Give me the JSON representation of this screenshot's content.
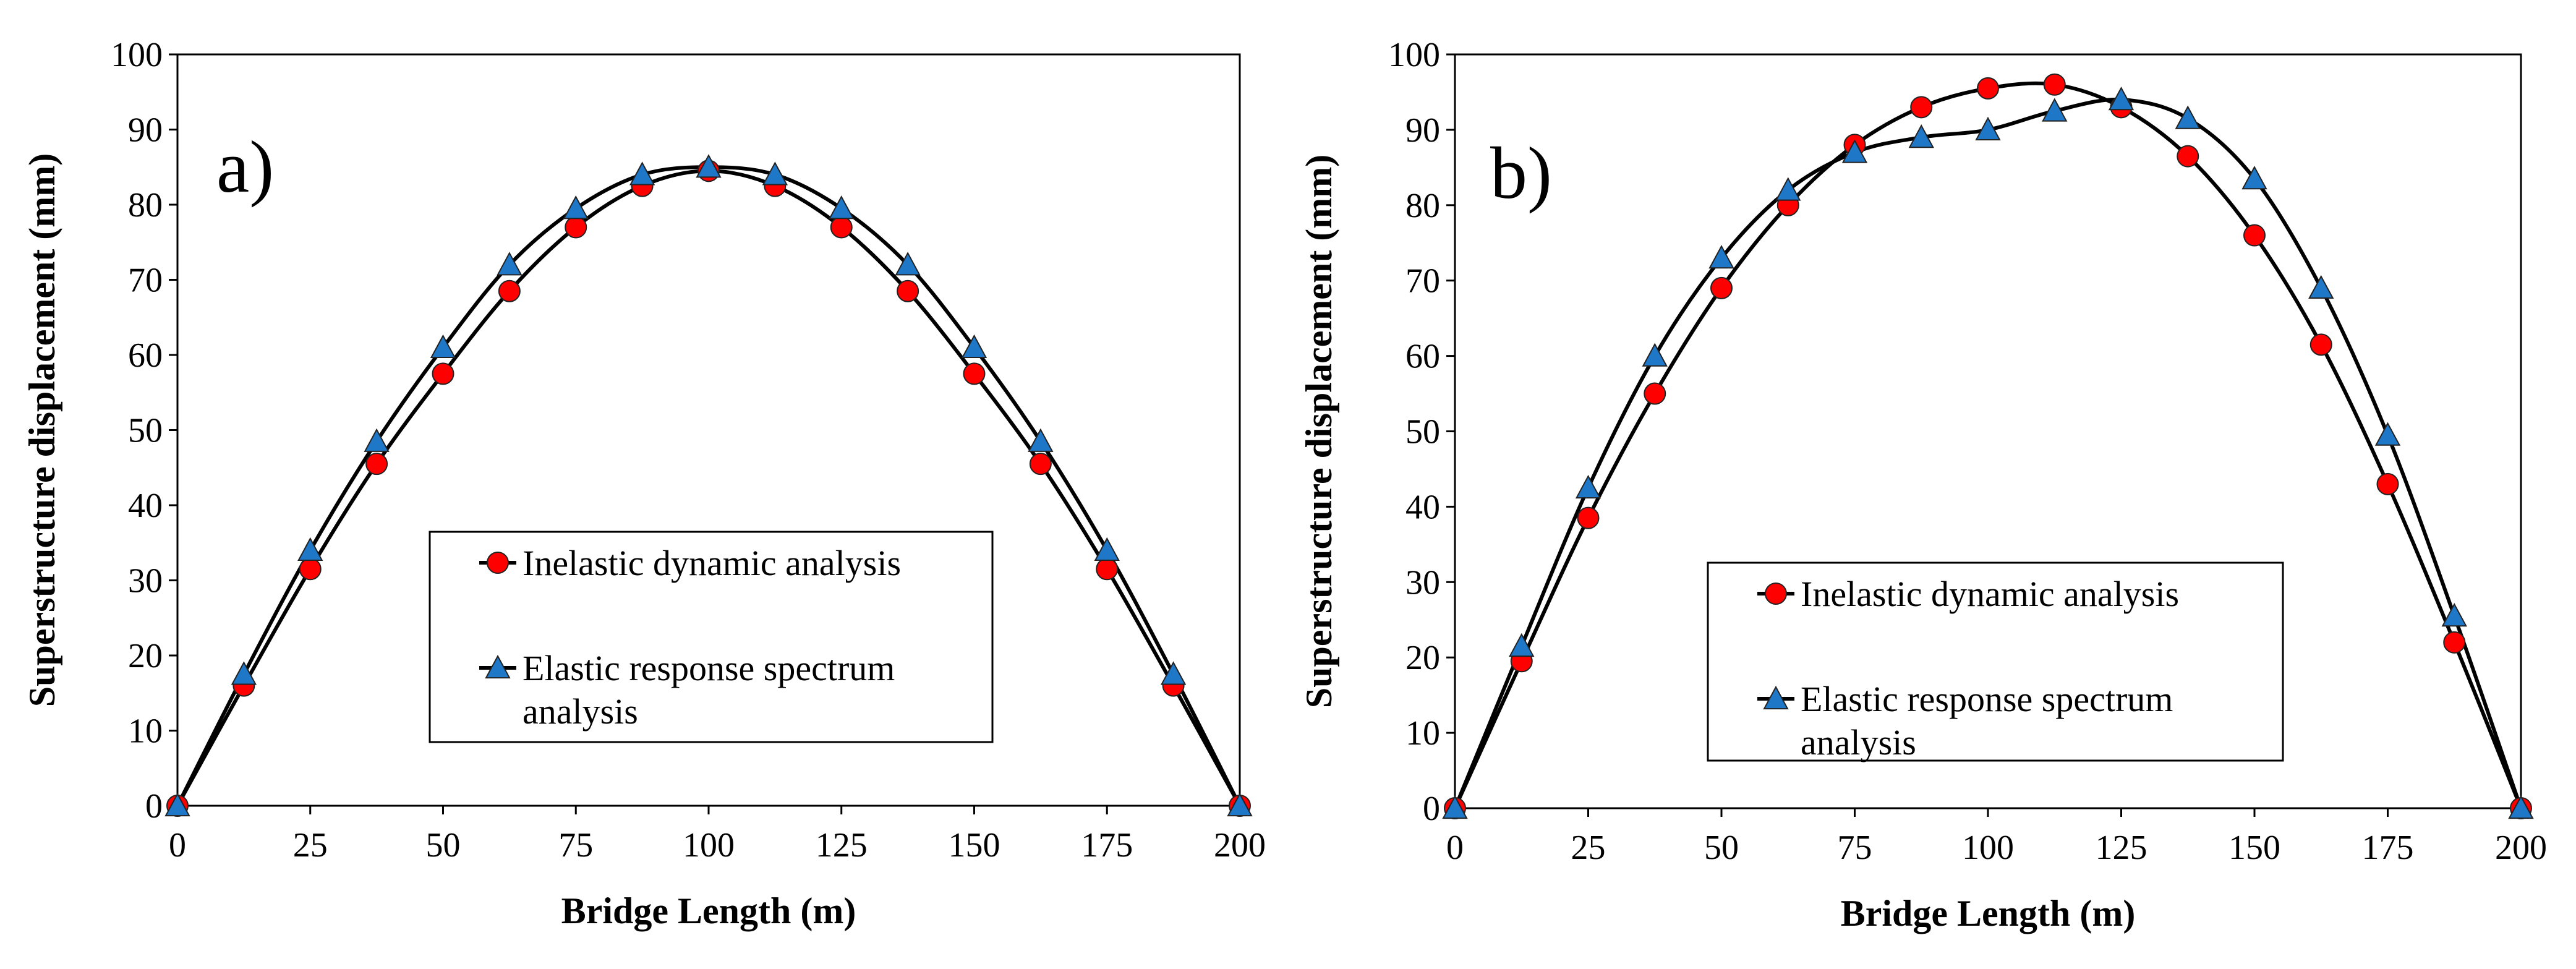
{
  "chart_data": [
    {
      "type": "line",
      "panel_label": "a)",
      "xlabel": "Bridge Length (m)",
      "ylabel": "Superstructure displacement  (mm)",
      "xlim": [
        0,
        200
      ],
      "ylim": [
        0,
        100
      ],
      "xticks": [
        0,
        25,
        50,
        75,
        100,
        125,
        150,
        175,
        200
      ],
      "yticks": [
        0,
        10,
        20,
        30,
        40,
        50,
        60,
        70,
        80,
        90,
        100
      ],
      "x": [
        0,
        12.5,
        25,
        37.5,
        50,
        62.5,
        75,
        87.5,
        100,
        112.5,
        125,
        137.5,
        150,
        162.5,
        175,
        187.5,
        200
      ],
      "series": [
        {
          "name": "Inelastic dynamic analysis",
          "marker": "circle",
          "color": "#ff0000",
          "values": [
            0,
            16,
            31.5,
            45.5,
            57.5,
            68.5,
            77,
            82.5,
            84.5,
            82.5,
            77,
            68.5,
            57.5,
            45.5,
            31.5,
            16,
            0
          ]
        },
        {
          "name": "Elastic response spectrum",
          "name_line2": "analysis",
          "marker": "triangle",
          "color": "#1f77c8",
          "values": [
            0,
            17.5,
            34,
            48.5,
            61,
            72,
            79.5,
            84,
            85,
            84,
            79.5,
            72,
            61,
            48.5,
            34,
            17.5,
            0
          ]
        }
      ],
      "legend_position": "center-bottom"
    },
    {
      "type": "line",
      "panel_label": "b)",
      "xlabel": "Bridge Length (m)",
      "ylabel": "Superstructure displacement  (mm)",
      "xlim": [
        0,
        200
      ],
      "ylim": [
        0,
        100
      ],
      "xticks": [
        0,
        25,
        50,
        75,
        100,
        125,
        150,
        175,
        200
      ],
      "yticks": [
        0,
        10,
        20,
        30,
        40,
        50,
        60,
        70,
        80,
        90,
        100
      ],
      "x": [
        0,
        12.5,
        25,
        37.5,
        50,
        62.5,
        75,
        87.5,
        100,
        112.5,
        125,
        137.5,
        150,
        162.5,
        175,
        187.5,
        200
      ],
      "series": [
        {
          "name": "Inelastic dynamic analysis",
          "marker": "circle",
          "color": "#ff0000",
          "values": [
            0,
            19.5,
            38.5,
            55,
            69,
            80,
            88,
            93,
            95.5,
            96,
            93,
            86.5,
            76,
            61.5,
            43,
            22,
            0
          ]
        },
        {
          "name": "Elastic response spectrum",
          "name_line2": "analysis",
          "marker": "triangle",
          "color": "#1f77c8",
          "values": [
            0,
            21.5,
            42.5,
            60,
            73,
            82,
            87,
            89,
            90,
            92.5,
            94,
            91.5,
            83.5,
            69,
            49.5,
            25.5,
            0
          ]
        }
      ],
      "legend_position": "center-bottom"
    }
  ]
}
